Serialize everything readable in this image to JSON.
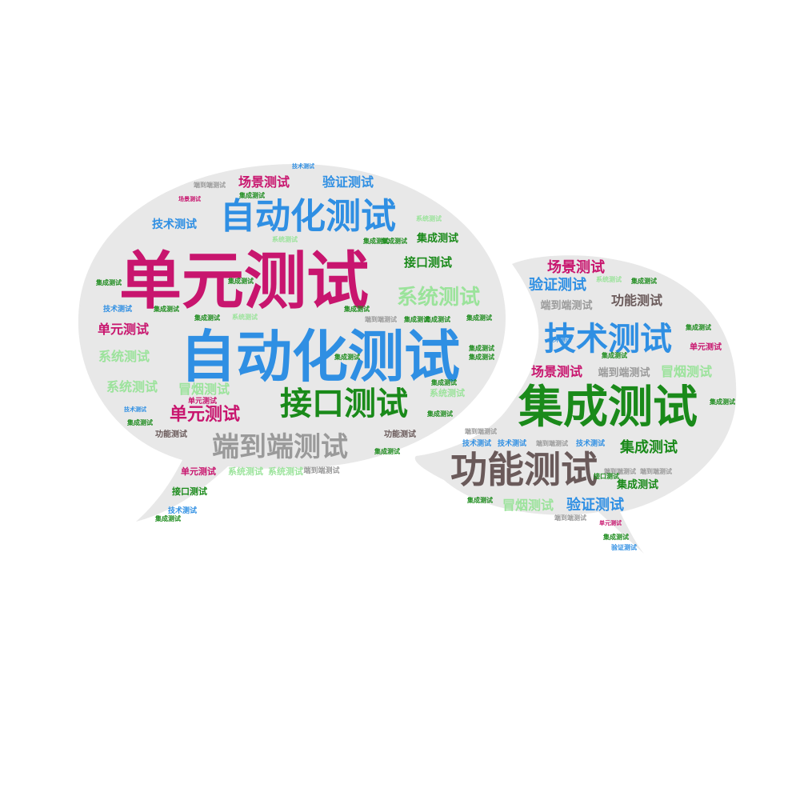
{
  "colors": {
    "bubble_fill": "#e8e8e8",
    "magenta": "#c8156e",
    "blue": "#2f8fe3",
    "green": "#1a8a1a",
    "light_green": "#9be39b",
    "gray": "#9a9a9a",
    "dark_gray": "#6a5a5a"
  },
  "word_cloud": {
    "bubbles": [
      "left-speech-bubble",
      "right-speech-bubble"
    ],
    "words": [
      {
        "text": "单元测试",
        "weight": 100,
        "color": "magenta"
      },
      {
        "text": "自动化测试",
        "weight": 98,
        "color": "blue"
      },
      {
        "text": "自动化测试",
        "weight": 62,
        "color": "blue"
      },
      {
        "text": "集成测试",
        "weight": 70,
        "color": "green"
      },
      {
        "text": "功能测试",
        "weight": 60,
        "color": "dark_gray"
      },
      {
        "text": "技术测试",
        "weight": 55,
        "color": "blue"
      },
      {
        "text": "接口测试",
        "weight": 54,
        "color": "green"
      },
      {
        "text": "端到端测试",
        "weight": 40,
        "color": "gray"
      },
      {
        "text": "系统测试",
        "weight": 30,
        "color": "light_green"
      },
      {
        "text": "单元测试",
        "weight": 24,
        "color": "magenta"
      },
      {
        "text": "场景测试",
        "weight": 20,
        "color": "magenta"
      },
      {
        "text": "验证测试",
        "weight": 20,
        "color": "blue"
      },
      {
        "text": "技术测试",
        "weight": 18,
        "color": "blue"
      },
      {
        "text": "接口测试",
        "weight": 18,
        "color": "green"
      },
      {
        "text": "集成测试",
        "weight": 17,
        "color": "green"
      },
      {
        "text": "单元测试",
        "weight": 17,
        "color": "magenta"
      },
      {
        "text": "场景测试",
        "weight": 19,
        "color": "magenta"
      },
      {
        "text": "验证测试",
        "weight": 19,
        "color": "blue"
      },
      {
        "text": "功能测试",
        "weight": 18,
        "color": "dark_gray"
      },
      {
        "text": "场景测试",
        "weight": 18,
        "color": "magenta"
      },
      {
        "text": "集成测试",
        "weight": 20,
        "color": "green"
      },
      {
        "text": "验证测试",
        "weight": 19,
        "color": "blue"
      },
      {
        "text": "系统测试",
        "weight": 16,
        "color": "light_green"
      },
      {
        "text": "系统测试",
        "weight": 16,
        "color": "light_green"
      },
      {
        "text": "冒烟测试",
        "weight": 16,
        "color": "light_green"
      },
      {
        "text": "冒烟测试",
        "weight": 16,
        "color": "light_green"
      },
      {
        "text": "冒烟测试",
        "weight": 16,
        "color": "light_green"
      },
      {
        "text": "端到端测试",
        "weight": 14,
        "color": "gray"
      },
      {
        "text": "端到端测试",
        "weight": 14,
        "color": "gray"
      },
      {
        "text": "集成测试",
        "weight": 12,
        "color": "green"
      },
      {
        "text": "集成测试",
        "weight": 12,
        "color": "green"
      },
      {
        "text": "技术测试",
        "weight": 12,
        "color": "blue"
      },
      {
        "text": "接口测试",
        "weight": 12,
        "color": "green"
      },
      {
        "text": "单元测试",
        "weight": 12,
        "color": "magenta"
      },
      {
        "text": "单元测试",
        "weight": 12,
        "color": "magenta"
      },
      {
        "text": "功能测试",
        "weight": 12,
        "color": "dark_gray"
      },
      {
        "text": "功能测试",
        "weight": 12,
        "color": "dark_gray"
      },
      {
        "text": "技术测试",
        "weight": 11,
        "color": "blue"
      },
      {
        "text": "技术测试",
        "weight": 11,
        "color": "blue"
      },
      {
        "text": "技术测试",
        "weight": 11,
        "color": "blue"
      },
      {
        "text": "技术测试",
        "weight": 11,
        "color": "blue"
      },
      {
        "text": "系统测试",
        "weight": 11,
        "color": "light_green"
      },
      {
        "text": "系统测试",
        "weight": 11,
        "color": "light_green"
      },
      {
        "text": "端到端测试",
        "weight": 10,
        "color": "gray"
      },
      {
        "text": "端到端测试",
        "weight": 10,
        "color": "gray"
      },
      {
        "text": "端到端测试",
        "weight": 10,
        "color": "gray"
      },
      {
        "text": "端到端测试",
        "weight": 10,
        "color": "gray"
      },
      {
        "text": "端到端测试",
        "weight": 10,
        "color": "gray"
      },
      {
        "text": "集成测试",
        "weight": 9,
        "color": "green"
      },
      {
        "text": "集成测试",
        "weight": 9,
        "color": "green"
      },
      {
        "text": "集成测试",
        "weight": 9,
        "color": "green"
      },
      {
        "text": "集成测试",
        "weight": 9,
        "color": "green"
      },
      {
        "text": "集成测试",
        "weight": 9,
        "color": "green"
      },
      {
        "text": "集成测试",
        "weight": 9,
        "color": "green"
      },
      {
        "text": "集成测试",
        "weight": 9,
        "color": "green"
      },
      {
        "text": "集成测试",
        "weight": 9,
        "color": "green"
      },
      {
        "text": "集成测试",
        "weight": 9,
        "color": "green"
      },
      {
        "text": "集成测试",
        "weight": 9,
        "color": "green"
      },
      {
        "text": "集成测试",
        "weight": 9,
        "color": "green"
      },
      {
        "text": "集成测试",
        "weight": 9,
        "color": "green"
      },
      {
        "text": "集成测试",
        "weight": 9,
        "color": "green"
      },
      {
        "text": "集成测试",
        "weight": 9,
        "color": "green"
      },
      {
        "text": "集成测试",
        "weight": 9,
        "color": "green"
      },
      {
        "text": "集成测试",
        "weight": 9,
        "color": "green"
      },
      {
        "text": "集成测试",
        "weight": 9,
        "color": "green"
      },
      {
        "text": "集成测试",
        "weight": 9,
        "color": "green"
      },
      {
        "text": "集成测试",
        "weight": 9,
        "color": "green"
      },
      {
        "text": "集成测试",
        "weight": 9,
        "color": "green"
      },
      {
        "text": "集成测试",
        "weight": 9,
        "color": "green"
      },
      {
        "text": "集成测试",
        "weight": 9,
        "color": "green"
      },
      {
        "text": "集成测试",
        "weight": 9,
        "color": "green"
      },
      {
        "text": "集成测试",
        "weight": 9,
        "color": "green"
      },
      {
        "text": "验证测试",
        "weight": 9,
        "color": "blue"
      },
      {
        "text": "场景测试",
        "weight": 9,
        "color": "magenta"
      },
      {
        "text": "技术测试",
        "weight": 9,
        "color": "blue"
      },
      {
        "text": "技术测试",
        "weight": 9,
        "color": "blue"
      },
      {
        "text": "技术测试",
        "weight": 9,
        "color": "blue"
      },
      {
        "text": "单元测试",
        "weight": 9,
        "color": "magenta"
      },
      {
        "text": "单元测试",
        "weight": 9,
        "color": "magenta"
      },
      {
        "text": "接口测试",
        "weight": 9,
        "color": "green"
      },
      {
        "text": "系统测试",
        "weight": 9,
        "color": "light_green"
      },
      {
        "text": "系统测试",
        "weight": 9,
        "color": "light_green"
      },
      {
        "text": "系统测试",
        "weight": 9,
        "color": "light_green"
      },
      {
        "text": "系统测试",
        "weight": 9,
        "color": "light_green"
      },
      {
        "text": "系统测试",
        "weight": 9,
        "color": "light_green"
      },
      {
        "text": "端到端测试",
        "weight": 9,
        "color": "gray"
      },
      {
        "text": "端到端测试",
        "weight": 9,
        "color": "gray"
      },
      {
        "text": "端到端测试",
        "weight": 9,
        "color": "gray"
      }
    ]
  }
}
